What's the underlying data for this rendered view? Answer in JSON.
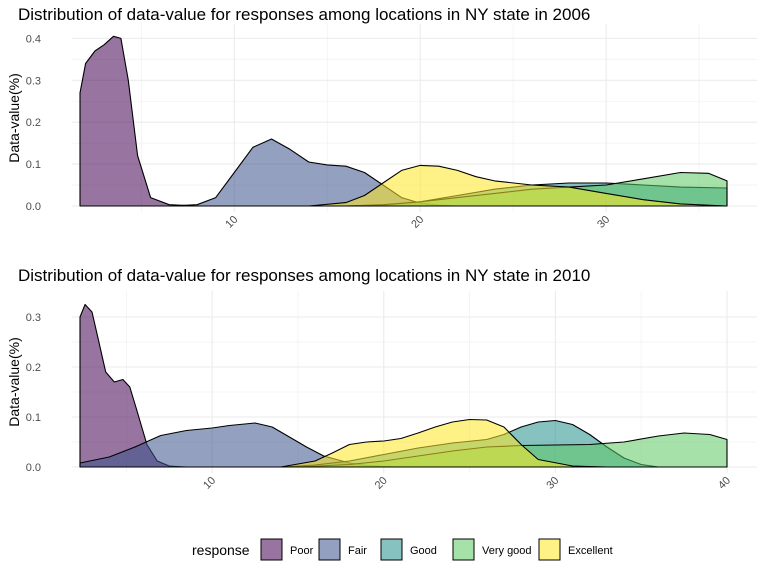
{
  "chart_data": [
    {
      "type": "area",
      "subtype": "density",
      "title": "Distribution of data-value for responses among locations in NY state in 2006",
      "xlabel": "",
      "ylabel": "Data-value(%)",
      "xlim": [
        1.7,
        36.5
      ],
      "ylim": [
        0,
        0.42
      ],
      "x_ticks": [
        "10",
        "20",
        "30"
      ],
      "y_ticks": [
        "0.0",
        "0.1",
        "0.2",
        "0.3",
        "0.4"
      ],
      "grid": true,
      "series": [
        {
          "name": "Poor",
          "color": "#440154",
          "x": [
            1.7,
            2.0,
            2.5,
            3.0,
            3.5,
            3.9,
            4.3,
            4.8,
            5.5,
            6.5,
            8.0,
            10.0,
            36.5
          ],
          "y": [
            0.27,
            0.34,
            0.37,
            0.385,
            0.405,
            0.4,
            0.3,
            0.12,
            0.02,
            0.003,
            0.0,
            0.0,
            0.0
          ]
        },
        {
          "name": "Fair",
          "color": "#3B528B",
          "x": [
            6.5,
            8.0,
            9.0,
            10.0,
            11.0,
            12.0,
            13.0,
            14.0,
            15.0,
            16.0,
            17.0,
            18.0,
            19.0,
            20.0,
            21.0,
            22.0
          ],
          "y": [
            0.0,
            0.003,
            0.02,
            0.08,
            0.14,
            0.16,
            0.135,
            0.105,
            0.098,
            0.095,
            0.08,
            0.05,
            0.02,
            0.007,
            0.002,
            0.0
          ]
        },
        {
          "name": "Good",
          "color": "#21908C",
          "x": [
            16.0,
            18.0,
            20.0,
            22.0,
            24.0,
            26.0,
            28.0,
            30.0,
            32.0,
            34.0,
            36.5
          ],
          "y": [
            0.0,
            0.002,
            0.01,
            0.025,
            0.04,
            0.05,
            0.055,
            0.055,
            0.05,
            0.045,
            0.043
          ]
        },
        {
          "name": "Very good",
          "color": "#5DC863",
          "x": [
            16.0,
            18.0,
            20.0,
            22.0,
            24.0,
            26.0,
            28.0,
            30.0,
            32.0,
            34.0,
            35.5,
            36.5
          ],
          "y": [
            0.0,
            0.003,
            0.01,
            0.02,
            0.03,
            0.04,
            0.045,
            0.05,
            0.065,
            0.08,
            0.078,
            0.06
          ]
        },
        {
          "name": "Excellent",
          "color": "#FDE725",
          "x": [
            14.0,
            16.0,
            17.0,
            18.0,
            19.0,
            20.0,
            21.0,
            22.0,
            23.0,
            24.0,
            26.0,
            28.0,
            30.0,
            32.0,
            34.0,
            36.5
          ],
          "y": [
            0.0,
            0.008,
            0.025,
            0.055,
            0.085,
            0.097,
            0.095,
            0.085,
            0.07,
            0.06,
            0.05,
            0.045,
            0.03,
            0.015,
            0.005,
            0.0
          ]
        }
      ]
    },
    {
      "type": "area",
      "subtype": "density",
      "title": "Distribution of data-value for responses among locations in NY state in 2010",
      "xlabel": "",
      "ylabel": "Data-value(%)",
      "xlim": [
        2.3,
        40.0
      ],
      "ylim": [
        0,
        0.34
      ],
      "x_ticks": [
        "10",
        "20",
        "30",
        "40"
      ],
      "y_ticks": [
        "0.0",
        "0.1",
        "0.2",
        "0.3"
      ],
      "grid": true,
      "series": [
        {
          "name": "Poor",
          "color": "#440154",
          "x": [
            2.3,
            2.6,
            3.0,
            3.4,
            3.8,
            4.3,
            4.8,
            5.2,
            5.6,
            6.2,
            6.8,
            7.5,
            8.5,
            40.0
          ],
          "y": [
            0.3,
            0.325,
            0.31,
            0.25,
            0.19,
            0.17,
            0.175,
            0.16,
            0.115,
            0.045,
            0.012,
            0.002,
            0.0,
            0.0
          ]
        },
        {
          "name": "Fair",
          "color": "#3B528B",
          "x": [
            2.3,
            4.0,
            5.5,
            7.0,
            8.5,
            10.0,
            11.0,
            12.5,
            13.5,
            14.5,
            15.5,
            16.5,
            18.0,
            19.0,
            20.0,
            21.0
          ],
          "y": [
            0.008,
            0.02,
            0.04,
            0.063,
            0.073,
            0.078,
            0.083,
            0.088,
            0.08,
            0.06,
            0.04,
            0.022,
            0.008,
            0.003,
            0.001,
            0.0
          ]
        },
        {
          "name": "Good",
          "color": "#21908C",
          "x": [
            14.0,
            16.0,
            18.0,
            20.0,
            22.0,
            24.0,
            26.0,
            27.0,
            28.0,
            29.0,
            30.0,
            31.0,
            32.0,
            33.0,
            34.0,
            35.0,
            36.0
          ],
          "y": [
            0.0,
            0.004,
            0.012,
            0.025,
            0.038,
            0.048,
            0.055,
            0.065,
            0.08,
            0.09,
            0.093,
            0.085,
            0.065,
            0.04,
            0.018,
            0.005,
            0.0
          ]
        },
        {
          "name": "Very good",
          "color": "#5DC863",
          "x": [
            15.0,
            18.0,
            20.0,
            22.0,
            24.0,
            26.0,
            28.0,
            30.0,
            32.0,
            34.0,
            36.0,
            37.5,
            39.0,
            40.0
          ],
          "y": [
            0.0,
            0.005,
            0.012,
            0.022,
            0.032,
            0.04,
            0.043,
            0.044,
            0.045,
            0.05,
            0.062,
            0.068,
            0.065,
            0.055
          ]
        },
        {
          "name": "Excellent",
          "color": "#FDE725",
          "x": [
            14.0,
            16.0,
            17.0,
            18.0,
            19.0,
            20.0,
            21.0,
            22.0,
            23.0,
            24.0,
            25.0,
            26.0,
            27.0,
            28.0,
            29.0,
            31.0,
            33.0
          ],
          "y": [
            0.0,
            0.012,
            0.028,
            0.045,
            0.05,
            0.052,
            0.057,
            0.068,
            0.08,
            0.09,
            0.095,
            0.094,
            0.08,
            0.045,
            0.015,
            0.002,
            0.0
          ]
        }
      ]
    }
  ],
  "legend": {
    "title": "response",
    "items": [
      {
        "label": "Poor",
        "color": "#440154"
      },
      {
        "label": "Fair",
        "color": "#3B528B"
      },
      {
        "label": "Good",
        "color": "#21908C"
      },
      {
        "label": "Very good",
        "color": "#5DC863"
      },
      {
        "label": "Excellent",
        "color": "#FDE725"
      }
    ]
  }
}
